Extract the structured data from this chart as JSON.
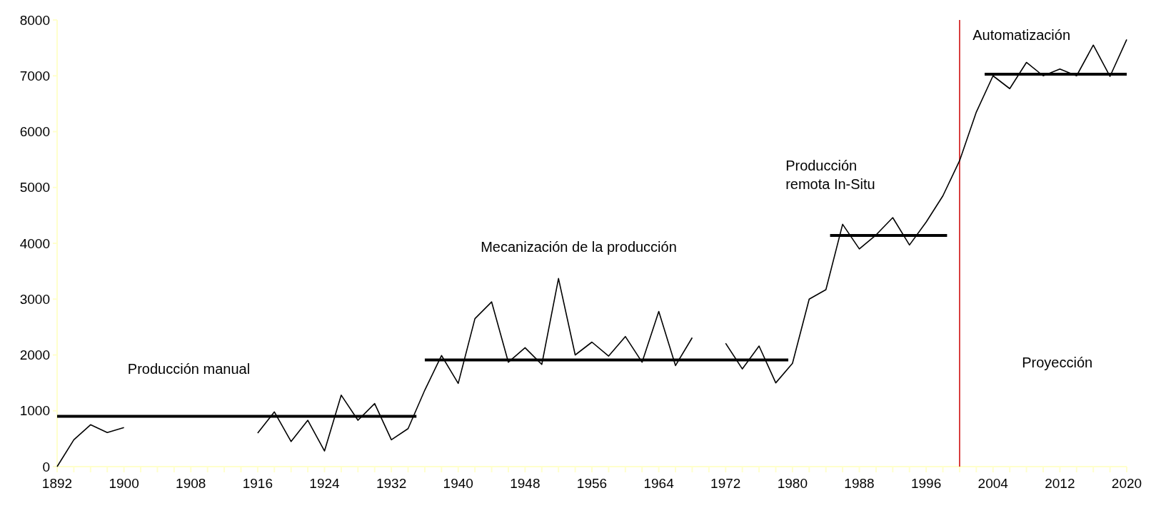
{
  "chart_data": {
    "type": "line",
    "xlim": [
      1892,
      2020
    ],
    "xticks": [
      1892,
      1900,
      1908,
      1916,
      1924,
      1932,
      1940,
      1948,
      1956,
      1964,
      1972,
      1980,
      1988,
      1996,
      2004,
      2012,
      2020
    ],
    "ylim": [
      0,
      8000
    ],
    "yticks": [
      0,
      1000,
      2000,
      3000,
      4000,
      5000,
      6000,
      7000,
      8000
    ],
    "grid": false,
    "marker": "none",
    "x": [
      1892,
      1894,
      1896,
      1898,
      1900,
      1902,
      1904,
      1906,
      1908,
      1910,
      1912,
      1914,
      1916,
      1918,
      1920,
      1922,
      1924,
      1926,
      1928,
      1930,
      1932,
      1934,
      1936,
      1938,
      1940,
      1942,
      1944,
      1946,
      1948,
      1950,
      1952,
      1954,
      1956,
      1958,
      1960,
      1962,
      1964,
      1966,
      1968,
      1970,
      1972,
      1974,
      1976,
      1978,
      1980,
      1982,
      1984,
      1986,
      1988,
      1990,
      1992,
      1994,
      1996,
      1998,
      2000,
      2002,
      2004,
      2006,
      2008,
      2010,
      2012,
      2014,
      2016,
      2018,
      2020
    ],
    "series": [
      {
        "color": "#000000",
        "values": [
          0,
          480,
          750,
          610,
          700,
          null,
          null,
          null,
          null,
          null,
          null,
          null,
          600,
          980,
          450,
          830,
          280,
          1280,
          830,
          1130,
          480,
          680,
          1370,
          1990,
          1490,
          2650,
          2950,
          1870,
          2130,
          1830,
          3370,
          2000,
          2230,
          1980,
          2330,
          1870,
          2780,
          1810,
          2310,
          null,
          2210,
          1750,
          2160,
          1500,
          1850,
          3000,
          3170,
          4340,
          3900,
          4150,
          4460,
          3970,
          4380,
          4850,
          5480,
          6350,
          7000,
          6770,
          7240,
          7000,
          7120,
          7000,
          7550,
          6990,
          7650
        ]
      },
      {
        "color": "#000000",
        "x": [
          1892,
          1935
        ],
        "values": [
          900,
          900
        ]
      },
      {
        "color": "#000000",
        "x": [
          1936,
          1979.5
        ],
        "values": [
          1910,
          1910
        ]
      },
      {
        "color": "#000000",
        "x": [
          1984.5,
          1998.5
        ],
        "values": [
          4140,
          4140
        ]
      },
      {
        "color": "#000000",
        "x": [
          2003,
          2020
        ],
        "values": [
          7030,
          7030
        ]
      }
    ],
    "ref_lines": [
      {
        "axis": "x",
        "value": 2000,
        "color": "#cc0000"
      }
    ],
    "annotations": [
      "Producción manual",
      "Mecanización de la producción",
      "Producción remota In-Situ",
      "Automatización",
      "Proyección"
    ]
  }
}
